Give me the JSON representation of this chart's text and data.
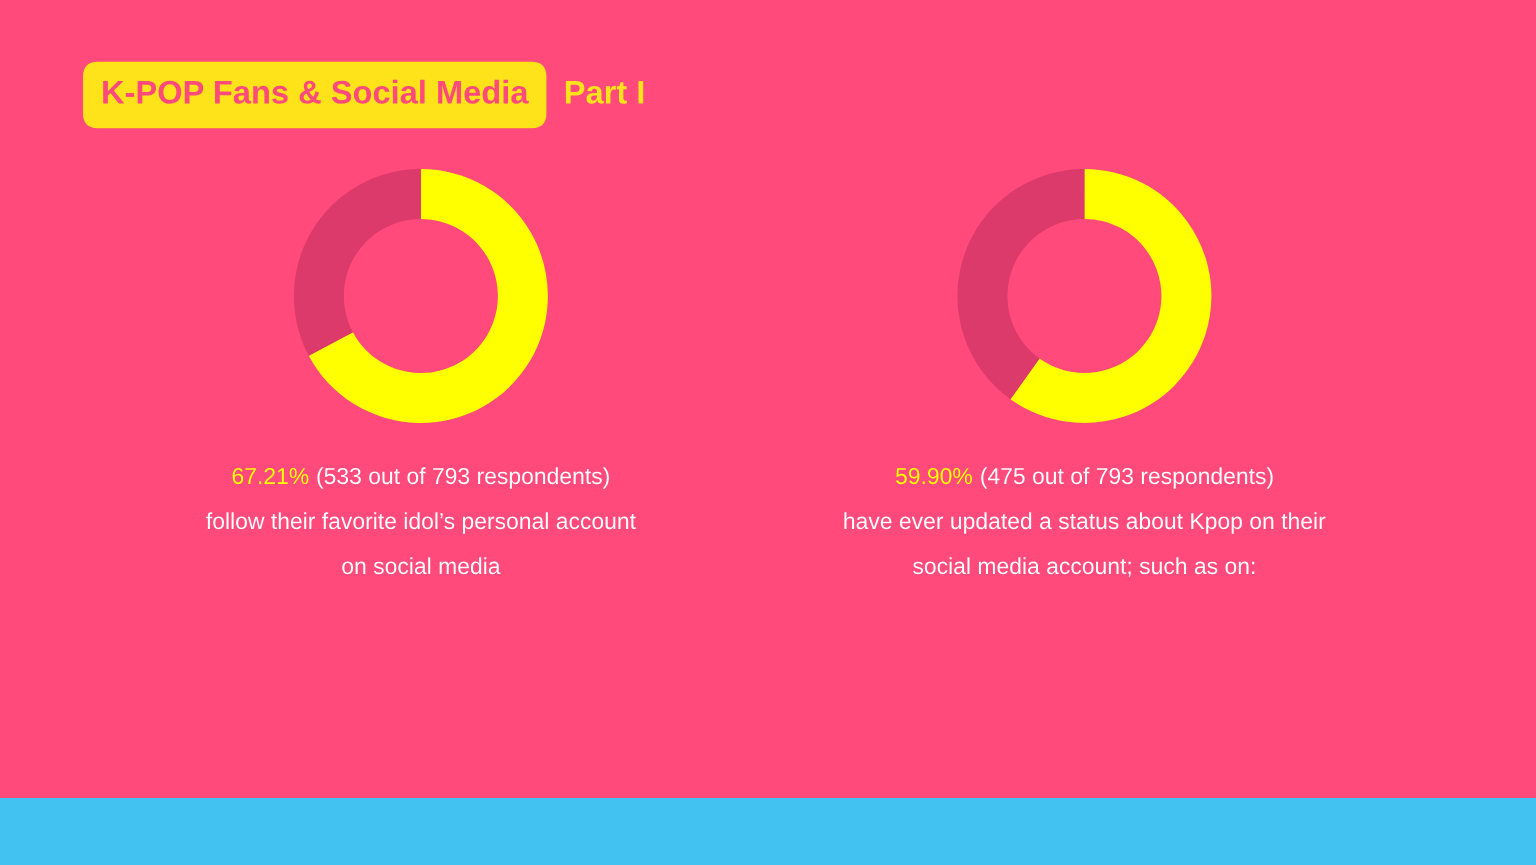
{
  "chart_data": [
    {
      "type": "donut",
      "title": "K-POP Fans & Social Media",
      "subtitle": "Part I",
      "categories": [
        null,
        null
      ],
      "values": [
        67.21,
        32.79
      ],
      "colors": [
        "#ffff00",
        "#dc3a6a"
      ],
      "annotations": [
        "67.21%",
        "(533 out of 793 respondents)",
        "follow their favorite idol’s personal account",
        "on social media"
      ]
    },
    {
      "type": "donut",
      "categories": [
        null,
        null
      ],
      "values": [
        59.9,
        40.1
      ],
      "colors": [
        "#ffff00",
        "#dc3a6a"
      ],
      "annotations": [
        "59.90%",
        "(475 out of 793 respondents)",
        "have ever updated a status about Kpop on their",
        "social media account; such as on:"
      ]
    }
  ]
}
